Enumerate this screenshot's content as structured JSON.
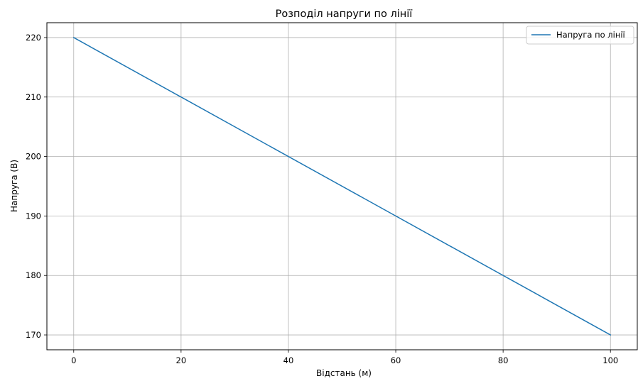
{
  "chart_data": {
    "type": "line",
    "title": "Розподіл напруги по лінії",
    "xlabel": "Відстань (м)",
    "ylabel": "Напруга (В)",
    "xlim": [
      -5,
      105
    ],
    "ylim": [
      167.5,
      222.5
    ],
    "xticks": [
      0,
      20,
      40,
      60,
      80,
      100
    ],
    "yticks": [
      170,
      180,
      190,
      200,
      210,
      220
    ],
    "grid": true,
    "legend_position": "top-right",
    "series": [
      {
        "name": "Напруга по лінії",
        "color": "#1f77b4",
        "x": [
          0,
          100
        ],
        "y": [
          220,
          170
        ]
      }
    ]
  }
}
